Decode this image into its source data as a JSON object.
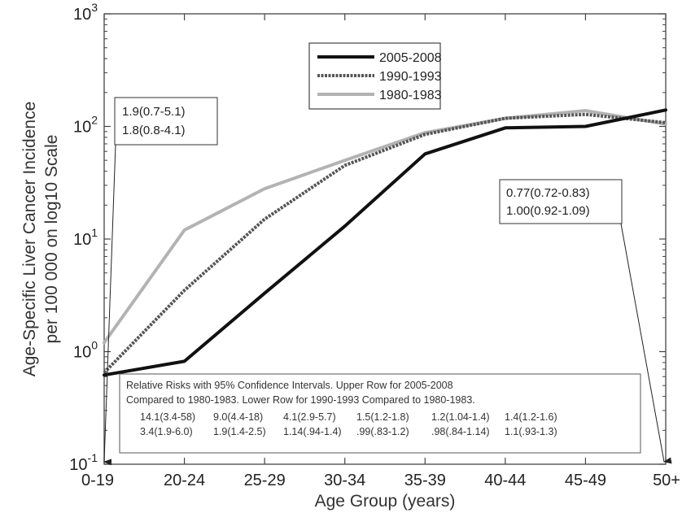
{
  "chart_data": {
    "type": "line",
    "title": "",
    "xlabel": "Age Group (years)",
    "ylabel_lines": [
      "Age-Specific Liver Cancer Incidence",
      "per 100 000 on log10 Scale"
    ],
    "y_scale": "log10",
    "ylim": [
      0.1,
      1000
    ],
    "y_ticks": [
      {
        "value": 0.1,
        "base": "10",
        "exp": "-1"
      },
      {
        "value": 1,
        "base": "10",
        "exp": "0"
      },
      {
        "value": 10,
        "base": "10",
        "exp": "1"
      },
      {
        "value": 100,
        "base": "10",
        "exp": "2"
      },
      {
        "value": 1000,
        "base": "10",
        "exp": "3"
      }
    ],
    "categories": [
      "0-19",
      "20-24",
      "25-29",
      "30-34",
      "35-39",
      "40-44",
      "45-49",
      "50+"
    ],
    "grid": false,
    "legend_position": "top-center",
    "series": [
      {
        "name": "2005-2008",
        "color": "#111111",
        "style": "solid",
        "values": [
          0.62,
          0.82,
          3.3,
          13,
          57,
          97,
          100,
          140
        ]
      },
      {
        "name": "1990-1993",
        "color": "#555555",
        "style": "dotted",
        "values": [
          0.65,
          3.5,
          15,
          45,
          85,
          118,
          128,
          108
        ]
      },
      {
        "name": "1980-1983",
        "color": "#b3b3b3",
        "style": "solid",
        "values": [
          1.2,
          12,
          28,
          50,
          88,
          118,
          138,
          105
        ]
      }
    ],
    "annotations": {
      "left_box": [
        "1.9(0.7-5.1)",
        "1.8(0.8-4.1)"
      ],
      "right_box": [
        "0.77(0.72-0.83)",
        "1.00(0.92-1.09)"
      ],
      "rr_box": {
        "header": [
          "Relative Risks with 95% Confidence Intervals.  Upper Row for 2005-2008",
          "Compared to 1980-1983.  Lower Row for 1990-1993 Compared to 1980-1983."
        ],
        "upper_row": [
          "14.1(3.4-58)",
          "9.0(4.4-18)",
          "4.1(2.9-5.7)",
          "1.5(1.2-1.8)",
          "1.2(1.04-1.4)",
          "1.4(1.2-1.6)"
        ],
        "lower_row": [
          "3.4(1.9-6.0)",
          "1.9(1.4-2.5)",
          "1.14(.94-1.4)",
          ".99(.83-1.2)",
          ".98(.84-1.14)",
          "1.1(.93-1.3)"
        ]
      }
    }
  }
}
